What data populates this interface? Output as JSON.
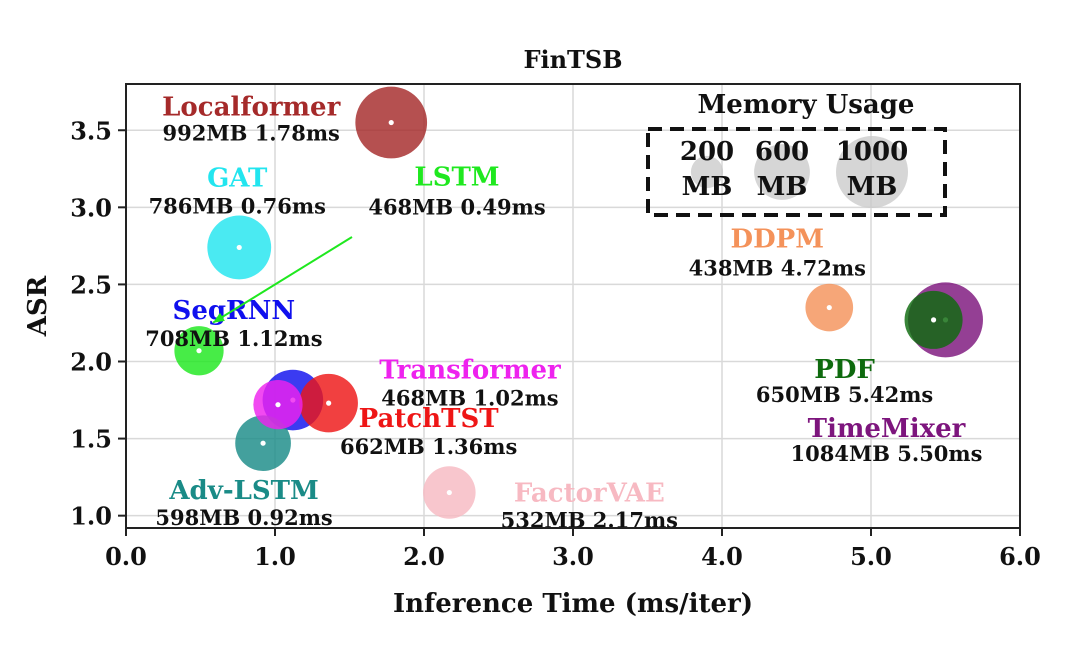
{
  "chart_data": {
    "type": "scatter",
    "title": "FinTSB",
    "xlabel": "Inference Time (ms/iter)",
    "ylabel": "ASR",
    "xlim": [
      0.0,
      6.0
    ],
    "ylim": [
      0.92,
      3.8
    ],
    "xticks": [
      "0.0",
      "1.0",
      "2.0",
      "3.0",
      "4.0",
      "5.0",
      "6.0"
    ],
    "yticks": [
      "1.0",
      "1.5",
      "2.0",
      "2.5",
      "3.0",
      "3.5"
    ],
    "grid": true,
    "points": [
      {
        "name": "Localformer",
        "stats": "992MB 1.78ms",
        "x": 1.78,
        "y": 3.55,
        "memory": 992,
        "color": "#a52a2a"
      },
      {
        "name": "GAT",
        "stats": "786MB 0.76ms",
        "x": 0.76,
        "y": 2.74,
        "memory": 786,
        "color": "#22e5ef"
      },
      {
        "name": "LSTM",
        "stats": "468MB 0.49ms",
        "x": 0.49,
        "y": 2.07,
        "memory": 468,
        "color": "#1fe81f"
      },
      {
        "name": "SegRNN",
        "stats": "708MB 1.12ms",
        "x": 1.12,
        "y": 1.75,
        "memory": 708,
        "color": "#1010ee"
      },
      {
        "name": "Transformer",
        "stats": "468MB 1.02ms",
        "x": 1.02,
        "y": 1.72,
        "memory": 468,
        "color": "#ee22ee"
      },
      {
        "name": "PatchTST",
        "stats": "662MB 1.36ms",
        "x": 1.36,
        "y": 1.73,
        "memory": 662,
        "color": "#ee1616"
      },
      {
        "name": "Adv-LSTM",
        "stats": "598MB 0.92ms",
        "x": 0.92,
        "y": 1.47,
        "memory": 598,
        "color": "#1a8b87"
      },
      {
        "name": "FactorVAE",
        "stats": "532MB 2.17ms",
        "x": 2.17,
        "y": 1.15,
        "memory": 532,
        "color": "#f7b9c2"
      },
      {
        "name": "DDPM",
        "stats": "438MB 4.72ms",
        "x": 4.72,
        "y": 2.35,
        "memory": 438,
        "color": "#f4925a"
      },
      {
        "name": "TimeMixer",
        "stats": "1084MB 5.50ms",
        "x": 5.5,
        "y": 2.27,
        "memory": 1084,
        "color": "#7d157d"
      },
      {
        "name": "PDF",
        "stats": "650MB 5.42ms",
        "x": 5.42,
        "y": 2.27,
        "memory": 650,
        "color": "#0e6a0e"
      }
    ],
    "annotations": [
      {
        "type": "arrow",
        "from_model": "LSTM",
        "to_model": "LSTM",
        "color": "#1fe81f"
      }
    ],
    "legend": {
      "title": "Memory Usage",
      "placement": "top-right",
      "entries": [
        {
          "value": 200,
          "label_line1": "200",
          "label_line2": "MB"
        },
        {
          "value": 600,
          "label_line1": "600",
          "label_line2": "MB"
        },
        {
          "value": 1000,
          "label_line1": "1000",
          "label_line2": "MB"
        }
      ],
      "bubble_color": "#c8c8c8"
    }
  }
}
